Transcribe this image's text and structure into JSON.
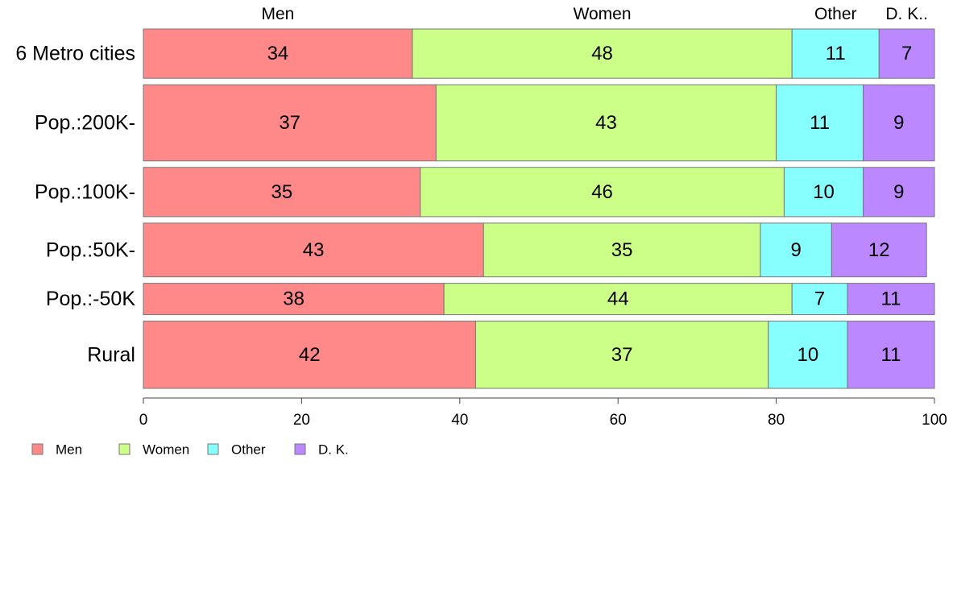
{
  "chart_data": {
    "type": "bar",
    "orientation": "horizontal",
    "stacked": true,
    "variable_width": true,
    "title": "",
    "xlabel": "",
    "ylabel": "",
    "xlim": [
      0,
      100
    ],
    "x_ticks": [
      0,
      20,
      40,
      60,
      80,
      100
    ],
    "grid": false,
    "legend_position": "bottom-left",
    "column_headers": [
      "Men",
      "Women",
      "Other",
      "D. K.."
    ],
    "categories": [
      "6 Metro cities",
      "Pop.:200K-",
      "Pop.:100K-",
      "Pop.:50K-",
      "Pop.:-50K",
      "Rural"
    ],
    "row_weights": [
      11,
      17,
      11,
      12,
      7,
      15
    ],
    "series": [
      {
        "name": "Men",
        "color": "#ff8888",
        "values": [
          34,
          37,
          35,
          43,
          38,
          42
        ]
      },
      {
        "name": "Women",
        "color": "#ccff88",
        "values": [
          48,
          43,
          46,
          35,
          44,
          37
        ]
      },
      {
        "name": "Other",
        "color": "#88ffff",
        "values": [
          11,
          11,
          10,
          9,
          7,
          10
        ]
      },
      {
        "name": "D. K.",
        "color": "#bb88ff",
        "values": [
          7,
          9,
          9,
          12,
          11,
          11
        ]
      }
    ]
  }
}
